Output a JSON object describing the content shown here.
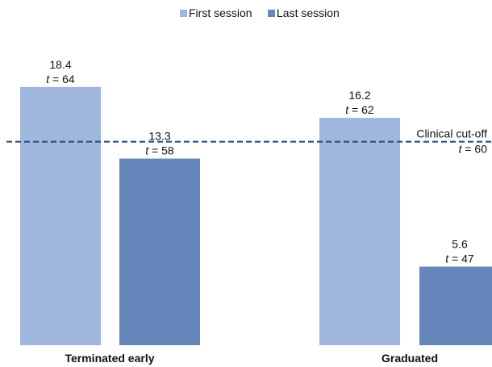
{
  "chart_data": {
    "type": "bar",
    "title": "",
    "xlabel": "",
    "ylabel": "",
    "grid": false,
    "legend_position": "top",
    "categories": [
      "Terminated early",
      "Graduated"
    ],
    "series": [
      {
        "name": "First session",
        "color": "#a0b7dd",
        "values": [
          18.4,
          16.2
        ],
        "labels": [
          {
            "value": "18.4",
            "t": "64"
          },
          {
            "value": "16.2",
            "t": "62"
          }
        ]
      },
      {
        "name": "Last session",
        "color": "#6587bc",
        "values": [
          13.3,
          5.6
        ],
        "labels": [
          {
            "value": "13.3",
            "t": "58"
          },
          {
            "value": "5.6",
            "t": "47"
          }
        ]
      }
    ],
    "ylim": [
      0,
      20
    ],
    "reference_line": {
      "value": 14.5,
      "label": "Clinical cut-off",
      "t": "60",
      "color": "#2f4d7e",
      "style": "dashed"
    }
  }
}
